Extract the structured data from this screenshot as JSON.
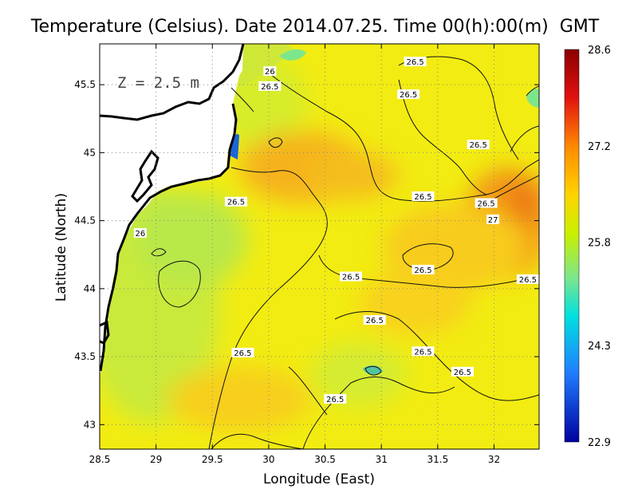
{
  "title": "Temperature (Celsius). Date 2014.07.25. Time 00(h):00(m)  GMT",
  "depth_label": "Z = 2.5 m",
  "x_axis": {
    "label": "Longitude (East)",
    "range": [
      28.5,
      32.4
    ],
    "ticks": [
      "28.5",
      "29",
      "29.5",
      "30",
      "30.5",
      "31",
      "31.5",
      "32"
    ]
  },
  "y_axis": {
    "label": "Latitude (North)",
    "range": [
      42.82,
      45.8
    ],
    "ticks": [
      "43",
      "43.5",
      "44",
      "44.5",
      "45",
      "45.5"
    ]
  },
  "colorbar": {
    "min": 22.9,
    "max": 28.6,
    "labels": [
      "28.6",
      "27.2",
      "25.8",
      "24.3",
      "22.9"
    ],
    "colors": [
      "#8b0000",
      "#e01010",
      "#ff8c00",
      "#ffd400",
      "#c8f000",
      "#7ee68a",
      "#00e0e0",
      "#2080ff",
      "#0000a0"
    ]
  },
  "contour_labels": [
    {
      "text": "26",
      "lon": 30.01,
      "lat": 45.6
    },
    {
      "text": "26.5",
      "lon": 30.01,
      "lat": 45.49
    },
    {
      "text": "26.5",
      "lon": 31.3,
      "lat": 45.67
    },
    {
      "text": "26.5",
      "lon": 31.24,
      "lat": 45.43
    },
    {
      "text": "26.5",
      "lon": 31.86,
      "lat": 45.06
    },
    {
      "text": "26.5",
      "lon": 29.71,
      "lat": 44.64
    },
    {
      "text": "26.5",
      "lon": 31.37,
      "lat": 44.68
    },
    {
      "text": "26.5",
      "lon": 31.93,
      "lat": 44.63
    },
    {
      "text": "27",
      "lon": 31.99,
      "lat": 44.51
    },
    {
      "text": "26",
      "lon": 28.86,
      "lat": 44.41
    },
    {
      "text": "26.5",
      "lon": 31.37,
      "lat": 44.14
    },
    {
      "text": "26.5",
      "lon": 30.73,
      "lat": 44.09
    },
    {
      "text": "26.5",
      "lon": 32.3,
      "lat": 44.07
    },
    {
      "text": "26.5",
      "lon": 30.94,
      "lat": 43.77
    },
    {
      "text": "26.5",
      "lon": 29.77,
      "lat": 43.53
    },
    {
      "text": "26.5",
      "lon": 31.37,
      "lat": 43.54
    },
    {
      "text": "26.5",
      "lon": 31.72,
      "lat": 43.39
    },
    {
      "text": "26.5",
      "lon": 30.59,
      "lat": 43.19
    }
  ]
}
